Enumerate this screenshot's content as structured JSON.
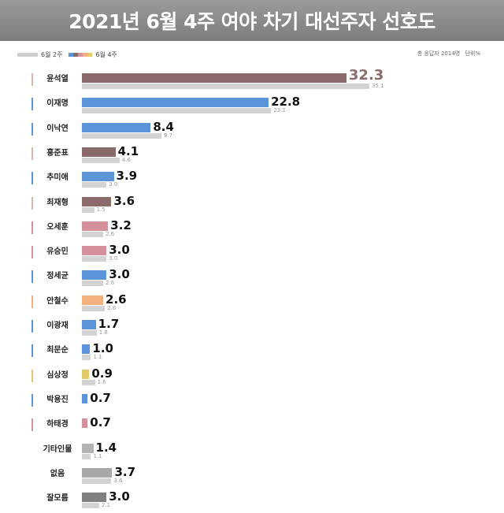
{
  "title": "2021년 6월 4주 여야 차기 대선주자 선호도",
  "legend": {
    "previous_label": "6월 2주",
    "current_label": "6월 4주",
    "current_swatches": [
      "#5b94d8",
      "#8b6a6b",
      "#d4919c",
      "#f2b07c",
      "#e3c86a"
    ]
  },
  "note": {
    "sample": "총 응답자 2014명",
    "unit": "단위%"
  },
  "colors": {
    "democratic": "#5b94d8",
    "ppp": "#8b6a6b",
    "ppp_light": "#d4919c",
    "ahn": "#f2b07c",
    "justice": "#e3c86a",
    "neutral": "#b3b3b3",
    "dontknow": "#808080",
    "previous": "#d3d3d3",
    "lead_value": "#8b6a6b"
  },
  "chart_data": {
    "type": "bar",
    "orientation": "horizontal",
    "title": "2021년 6월 4주 여야 차기 대선주자 선호도",
    "unit": "%",
    "series": [
      {
        "name": "6월 4주",
        "values": [
          32.3,
          22.8,
          8.4,
          4.1,
          3.9,
          3.6,
          3.2,
          3.0,
          3.0,
          2.6,
          1.7,
          1.0,
          0.9,
          0.7,
          0.7,
          1.4,
          3.7,
          3.0
        ]
      },
      {
        "name": "6월 2주",
        "values": [
          35.1,
          23.1,
          9.7,
          4.6,
          3.0,
          1.5,
          2.6,
          3.0,
          2.6,
          2.8,
          1.8,
          1.1,
          1.6,
          null,
          null,
          1.1,
          3.6,
          2.1
        ]
      }
    ],
    "categories": [
      "윤석열",
      "이재명",
      "이낙연",
      "홍준표",
      "추미애",
      "최재형",
      "오세훈",
      "유승민",
      "정세균",
      "안철수",
      "이광재",
      "최문순",
      "심상정",
      "박용진",
      "하태경",
      "기타인물",
      "없음",
      "잘모름"
    ],
    "current_labels": [
      "32.3",
      "22.8",
      "8.4",
      "4.1",
      "3.9",
      "3.6",
      "3.2",
      "3.0",
      "3.0",
      "2.6",
      "1.7",
      "1.0",
      "0.9",
      "0.7",
      "0.7",
      "1.4",
      "3.7",
      "3.0"
    ],
    "previous_labels": [
      "35.1",
      "23.1",
      "9.7",
      "4.6",
      "3.0",
      "1.5",
      "2.6",
      "3.0",
      "2.6",
      "2.8",
      "1.8",
      "1.1",
      "1.6",
      "",
      "",
      "1.1",
      "3.6",
      "2.1"
    ],
    "bar_colors": [
      "#8b6a6b",
      "#5b94d8",
      "#5b94d8",
      "#8b6a6b",
      "#5b94d8",
      "#8b6a6b",
      "#d4919c",
      "#d4919c",
      "#5b94d8",
      "#f2b07c",
      "#5b94d8",
      "#5b94d8",
      "#e3c86a",
      "#5b94d8",
      "#d4919c",
      "#b3b3b3",
      "#a8a8a8",
      "#808080"
    ],
    "tick_colors": [
      "#d9b8a8",
      "#5b94d8",
      "#5b94d8",
      "#d9b8a8",
      "#5b94d8",
      "#d9b8a8",
      "#d4919c",
      "#d4919c",
      "#5b94d8",
      "#f2b07c",
      "#5b94d8",
      "#5b94d8",
      "#e3c86a",
      "#5b94d8",
      "#d4919c",
      "",
      "",
      ""
    ],
    "xlim": [
      0,
      40
    ],
    "grid": false,
    "legend_position": "top-left"
  }
}
